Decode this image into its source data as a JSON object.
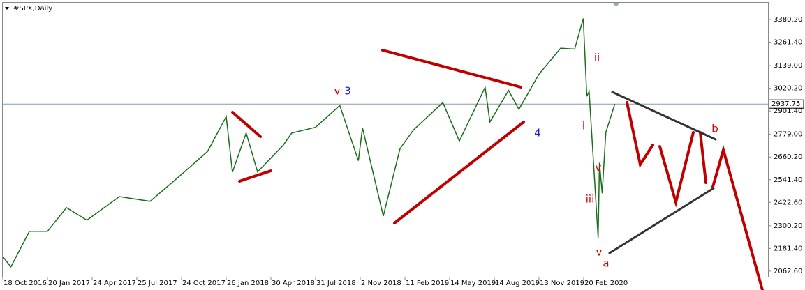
{
  "chart_data": {
    "type": "line",
    "title": "#SPX,Daily",
    "color": "#1b6e1b",
    "x": [
      "2016-10-18",
      "2016-11-04",
      "2016-12-13",
      "2017-01-20",
      "2017-03-01",
      "2017-04-13",
      "2017-06-19",
      "2017-08-21",
      "2017-10-24",
      "2017-12-18",
      "2018-01-26",
      "2018-02-08",
      "2018-03-09",
      "2018-04-02",
      "2018-05-25",
      "2018-06-12",
      "2018-07-31",
      "2018-09-20",
      "2018-10-29",
      "2018-11-07",
      "2018-12-24",
      "2019-01-31",
      "2019-03-01",
      "2019-04-30",
      "2019-06-03",
      "2019-07-26",
      "2019-08-05",
      "2019-09-12",
      "2019-10-03",
      "2019-11-13",
      "2019-12-31",
      "2020-01-31",
      "2020-02-19",
      "2020-02-27",
      "2020-03-03",
      "2020-03-23",
      "2020-03-26",
      "2020-04-01",
      "2020-04-09",
      "2020-04-29"
    ],
    "values": [
      2139,
      2085,
      2271,
      2271,
      2395,
      2329,
      2453,
      2428,
      2569,
      2690,
      2872,
      2581,
      2786,
      2582,
      2721,
      2786,
      2816,
      2930,
      2641,
      2813,
      2351,
      2704,
      2803,
      2945,
      2744,
      3025,
      2844,
      3009,
      2910,
      3094,
      3230,
      3225,
      3386,
      2978,
      3003,
      2237,
      2630,
      2470,
      2789,
      2937.75
    ],
    "ylim": [
      2033,
      3468
    ],
    "yticks": [
      {
        "value": 2062.6,
        "label": "2062.60"
      },
      {
        "value": 2181.4,
        "label": "2181.40"
      },
      {
        "value": 2300.2,
        "label": "2300.20"
      },
      {
        "value": 2422.6,
        "label": "2422.60"
      },
      {
        "value": 2541.4,
        "label": "2541.40"
      },
      {
        "value": 2660.2,
        "label": "2660.20"
      },
      {
        "value": 2779,
        "label": "2779.00"
      },
      {
        "value": 2901.4,
        "label": "2901.40"
      },
      {
        "value": 3020.2,
        "label": "3020.20"
      },
      {
        "value": 3139,
        "label": "3139.00"
      },
      {
        "value": 3261.4,
        "label": "3261.40"
      },
      {
        "value": 3380.2,
        "label": "3380.20"
      }
    ],
    "xticks": [
      {
        "value": "2016-10-18",
        "label": "18 Oct 2016"
      },
      {
        "value": "2017-01-20",
        "label": "20 Jan 2017"
      },
      {
        "value": "2017-04-24",
        "label": "24 Apr 2017"
      },
      {
        "value": "2017-07-25",
        "label": "25 Jul 2017"
      },
      {
        "value": "2017-10-24",
        "label": "24 Oct 2017"
      },
      {
        "value": "2018-01-26",
        "label": "26 Jan 2018"
      },
      {
        "value": "2018-04-30",
        "label": "30 Apr 2018"
      },
      {
        "value": "2018-07-31",
        "label": "31 Jul 2018"
      },
      {
        "value": "2018-11-02",
        "label": "2 Nov 2018"
      },
      {
        "value": "2019-02-11",
        "label": "11 Feb 2019"
      },
      {
        "value": "2019-05-14",
        "label": "14 May 2019"
      },
      {
        "value": "2019-08-14",
        "label": "14 Aug 2019"
      },
      {
        "value": "2019-11-13",
        "label": "13 Nov 2019"
      },
      {
        "value": "2020-02-20",
        "label": "20 Feb 2020"
      }
    ],
    "price_marker": {
      "value": 2937.75,
      "label": "2937.75"
    },
    "annotations": [
      {
        "text": "v",
        "color": "#d00000"
      },
      {
        "text": "3",
        "color": "#1f1fbf"
      },
      {
        "text": "4",
        "color": "#1f1fbf"
      },
      {
        "text": "ii",
        "color": "#d00000"
      },
      {
        "text": "i",
        "color": "#d00000"
      },
      {
        "text": "v",
        "color": "#d00000"
      },
      {
        "text": "iii",
        "color": "#d00000"
      },
      {
        "text": "v",
        "color": "#d00000"
      },
      {
        "text": "a",
        "color": "#d00000"
      },
      {
        "text": "b",
        "color": "#d00000"
      }
    ]
  }
}
